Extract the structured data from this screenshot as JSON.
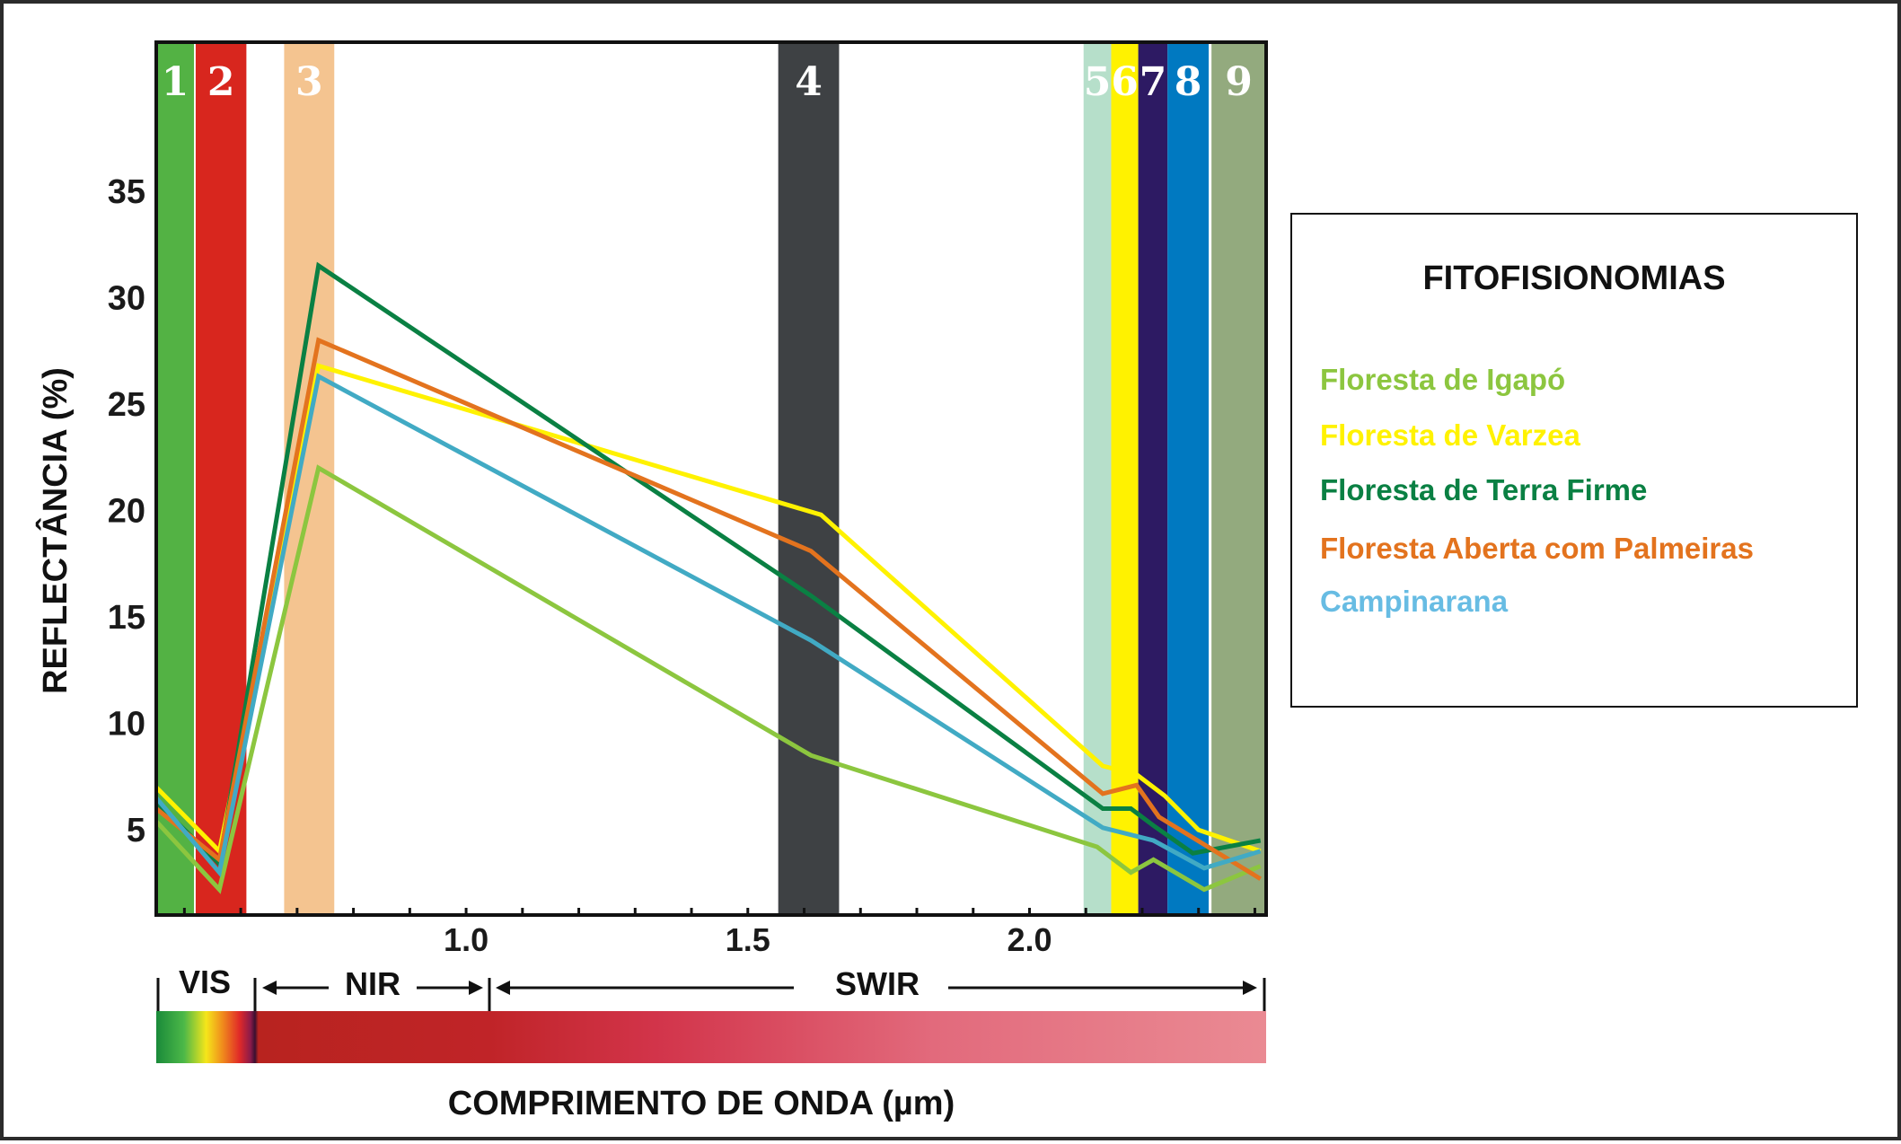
{
  "chart_data": {
    "type": "line",
    "xlabel": "COMPRIMENTO DE ONDA (µm)",
    "ylabel": "REFLECTÂNCIA (%)",
    "xlim": [
      0.45,
      2.42
    ],
    "ylim": [
      1,
      42
    ],
    "x_ticks": [
      "1.0",
      "1.5",
      "2.0"
    ],
    "x_tick_values": [
      1.0,
      1.5,
      2.0
    ],
    "y_ticks": [
      "5",
      "10",
      "15",
      "20",
      "25",
      "30",
      "35"
    ],
    "y_tick_values": [
      5,
      10,
      15,
      20,
      25,
      30,
      35
    ],
    "bands": [
      {
        "label": "1",
        "x0": 0.45,
        "x1": 0.517,
        "color": "#53b244"
      },
      {
        "label": "2",
        "x0": 0.52,
        "x1": 0.61,
        "color": "#d8261e"
      },
      {
        "label": "3",
        "x0": 0.677,
        "x1": 0.766,
        "color": "#f4c490"
      },
      {
        "label": "4",
        "x0": 1.554,
        "x1": 1.662,
        "color": "#3e4144"
      },
      {
        "label": "5",
        "x0": 2.096,
        "x1": 2.145,
        "color": "#b6dfca"
      },
      {
        "label": "6",
        "x0": 2.145,
        "x1": 2.193,
        "color": "#fff200"
      },
      {
        "label": "7",
        "x0": 2.193,
        "x1": 2.245,
        "color": "#2d1a63"
      },
      {
        "label": "8",
        "x0": 2.245,
        "x1": 2.318,
        "color": "#0079c1"
      },
      {
        "label": "9",
        "x0": 2.323,
        "x1": 2.42,
        "color": "#93aa7e"
      }
    ],
    "series": [
      {
        "name": "Floresta de Igapó",
        "color": "#8cc63f",
        "x": [
          0.45,
          0.562,
          0.738,
          1.612,
          2.12,
          2.18,
          2.22,
          2.31,
          2.41
        ],
        "y": [
          5.4,
          2.2,
          22.0,
          8.5,
          4.2,
          3.0,
          3.6,
          2.2,
          3.3
        ]
      },
      {
        "name": "Floresta de Varzea",
        "color": "#fff200",
        "x": [
          0.45,
          0.562,
          0.738,
          1.63,
          2.13,
          2.19,
          2.24,
          2.3,
          2.41
        ],
        "y": [
          7.0,
          4.0,
          26.8,
          19.8,
          8.0,
          7.6,
          6.6,
          5.0,
          4.0
        ]
      },
      {
        "name": "Floresta de Terra Firme",
        "color": "#0a8043",
        "x": [
          0.45,
          0.562,
          0.738,
          1.612,
          2.13,
          2.18,
          2.22,
          2.29,
          2.41
        ],
        "y": [
          6.3,
          3.4,
          31.5,
          16.0,
          6.0,
          6.0,
          5.2,
          3.9,
          4.5
        ]
      },
      {
        "name": "Floresta Aberta com Palmeiras",
        "color": "#e3731e",
        "x": [
          0.45,
          0.562,
          0.738,
          1.612,
          2.13,
          2.19,
          2.23,
          2.41
        ],
        "y": [
          6.0,
          3.6,
          28.0,
          18.1,
          6.7,
          7.1,
          5.6,
          2.7
        ]
      },
      {
        "name": "Campinarana",
        "color": "#41aac4",
        "x": [
          0.45,
          0.562,
          0.738,
          1.612,
          2.13,
          2.22,
          2.31,
          2.41
        ],
        "y": [
          6.5,
          3.0,
          26.3,
          13.9,
          5.1,
          4.5,
          3.2,
          4.0
        ]
      }
    ],
    "grid": false,
    "legend_position": "right"
  },
  "regions": {
    "vis": "VIS",
    "nir": "NIR",
    "swir": "SWIR"
  },
  "legend": {
    "title": "FITOFISIONOMIAS",
    "items": [
      {
        "label": "Floresta de Igapó",
        "color": "#8cc63f"
      },
      {
        "label": "Floresta de Varzea",
        "color": "#fff200"
      },
      {
        "label": "Floresta de Terra Firme",
        "color": "#0a8043"
      },
      {
        "label": "Floresta Aberta com Palmeiras",
        "color": "#e3731e"
      },
      {
        "label": "Campinarana",
        "color": "#67bce3"
      }
    ]
  }
}
